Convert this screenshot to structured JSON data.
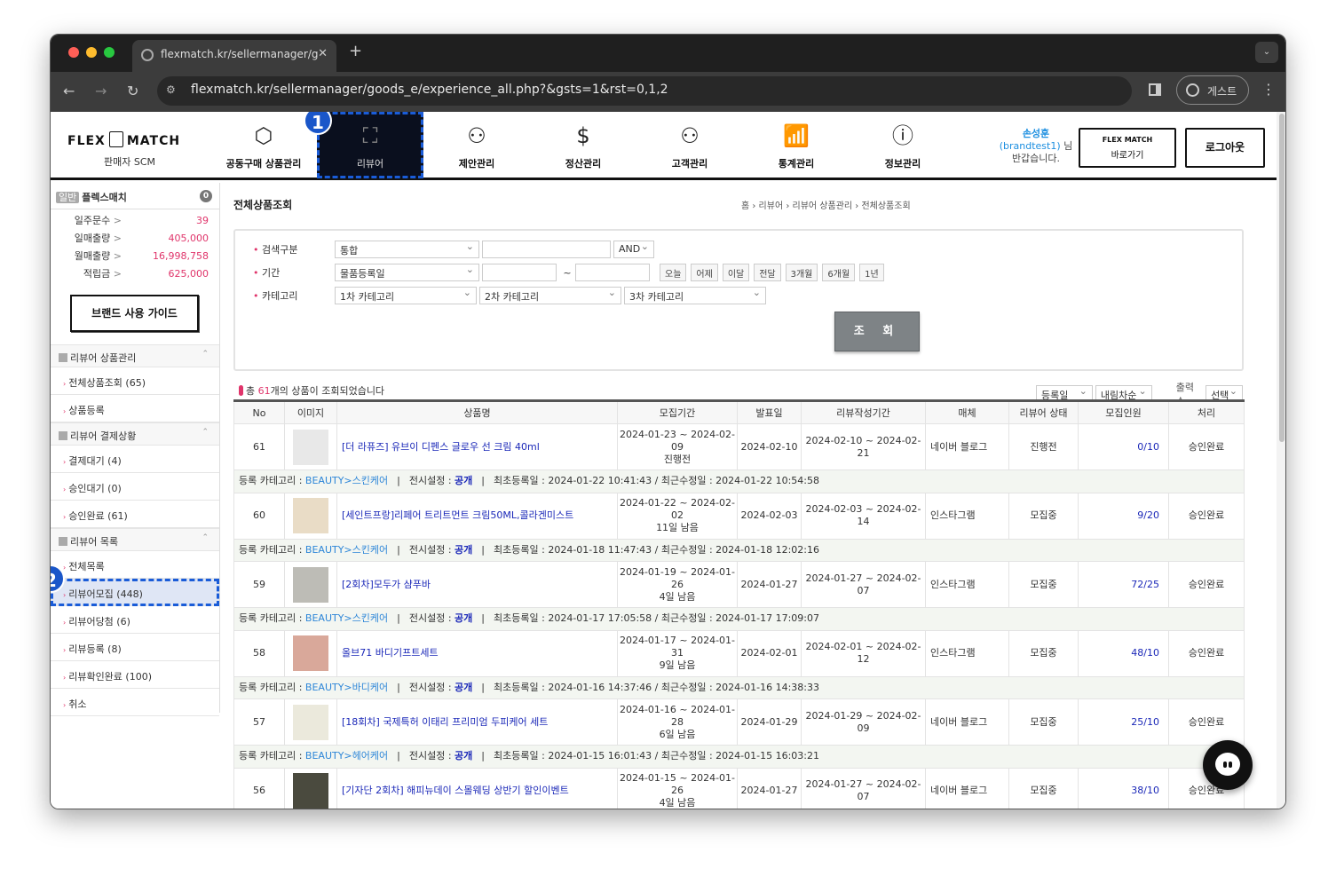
{
  "browser": {
    "tab_title": "flexmatch.kr/sellermanager/g",
    "url": "flexmatch.kr/sellermanager/goods_e/experience_all.php?&gsts=1&rst=0,1,2",
    "profile_label": "게스트"
  },
  "header": {
    "logo_text_left": "FLEX",
    "logo_text_right": "MATCH",
    "logo_sub": "판매자 SCM",
    "nav": [
      {
        "label": "공동구매 상품관리",
        "icon": "box-icon"
      },
      {
        "label": "리뷰어",
        "icon": "network-box-icon",
        "active": true
      },
      {
        "label": "제안관리",
        "icon": "people-hand-icon"
      },
      {
        "label": "정산관리",
        "icon": "coin-hand-icon"
      },
      {
        "label": "고객관리",
        "icon": "customers-icon"
      },
      {
        "label": "통계관리",
        "icon": "chart-growth-icon"
      },
      {
        "label": "정보관리",
        "icon": "info-icon"
      }
    ],
    "user_name": "손성훈",
    "user_id": "(brandtest1)",
    "user_suffix": "님",
    "greeting": "반갑습니다.",
    "flexmatch_button_logo": "FLEX MATCH",
    "flexmatch_button_label": "바로가기",
    "logout_label": "로그아웃"
  },
  "annotations": {
    "badge1": "1",
    "badge2": "2"
  },
  "sidebar": {
    "tier": "일반",
    "store_name": "플렉스매치",
    "notice_count": "0",
    "stats": [
      {
        "label": "일주문수",
        "value": "39"
      },
      {
        "label": "일매출량",
        "value": "405,000"
      },
      {
        "label": "월매출량",
        "value": "16,998,758"
      },
      {
        "label": "적립금",
        "value": "625,000"
      }
    ],
    "guide_button": "브랜드 사용 가이드",
    "sections": [
      {
        "title": "리뷰어 상품관리",
        "items": [
          "전체상품조회 (65)",
          "상품등록"
        ]
      },
      {
        "title": "리뷰어 결제상황",
        "items": [
          "결제대기 (4)",
          "승인대기 (0)",
          "승인완료 (61)"
        ]
      },
      {
        "title": "리뷰어 목록",
        "items": [
          "전체목록",
          "리뷰어모집 (448)",
          "리뷰어당첨 (6)",
          "리뷰등록 (8)",
          "리뷰확인완료 (100)",
          "취소"
        ]
      }
    ],
    "selected_item": "리뷰어모집 (448)"
  },
  "main": {
    "title": "전체상품조회",
    "breadcrumb": "홈 › 리뷰어 › 리뷰어 상품관리 › 전체상품조회",
    "search": {
      "type_label": "검색구분",
      "type_value": "통합",
      "keyword_value": "",
      "logic_value": "AND",
      "period_label": "기간",
      "period_type": "물품등록일",
      "date_from": "",
      "date_sep": "~",
      "date_to": "",
      "quick": [
        "오늘",
        "어제",
        "이달",
        "전달",
        "3개월",
        "6개월",
        "1년"
      ],
      "category_label": "카테고리",
      "cat1": "1차 카테고리",
      "cat2": "2차 카테고리",
      "cat3": "3차 카테고리",
      "submit": "조 회"
    },
    "total_prefix": "총 ",
    "total_count": "61",
    "total_suffix": "개의 상품이 조회되었습니다",
    "sort_field": "등록일",
    "sort_order": "내림차순",
    "page_size_label": "출력수",
    "page_size_value": "선택",
    "columns": [
      "No",
      "이미지",
      "상품명",
      "모집기간",
      "발표일",
      "리뷰작성기간",
      "매체",
      "리뷰어 상태",
      "모집인원",
      "처리"
    ],
    "info_labels": {
      "category": "등록 카테고리 : ",
      "display": "전시설정 : ",
      "first": "최초등록일 : ",
      "modified": " / 최근수정일 : "
    },
    "rows": [
      {
        "no": "61",
        "name": "[더 라퓨즈] 유브이 디펜스 글로우 선 크림 40ml",
        "period": "2024-01-23 ~ 2024-02-09",
        "remain": "진행전",
        "announce": "2024-02-10",
        "review_period": "2024-02-10 ~ 2024-02-21",
        "media": "네이버 블로그",
        "status": "진행전",
        "count": "0/10",
        "process": "승인완료",
        "category": "BEAUTY>스킨케어",
        "display": "공개",
        "created": "2024-01-22 10:41:43",
        "modified": "2024-01-22 10:54:58",
        "thumb": "#e8e8e8"
      },
      {
        "no": "60",
        "name": "[세인트프랑]리페어 트리트먼트 크림50ML,콜라겐미스트",
        "period": "2024-01-22 ~ 2024-02-02",
        "remain": "11일 남음",
        "announce": "2024-02-03",
        "review_period": "2024-02-03 ~ 2024-02-14",
        "media": "인스타그램",
        "status": "모집중",
        "count": "9/20",
        "process": "승인완료",
        "category": "BEAUTY>스킨케어",
        "display": "공개",
        "created": "2024-01-18 11:47:43",
        "modified": "2024-01-18 12:02:16",
        "thumb": "#e9dcc6"
      },
      {
        "no": "59",
        "name": "[2회차]모두가 샴푸바",
        "period": "2024-01-19 ~ 2024-01-26",
        "remain": "4일 남음",
        "announce": "2024-01-27",
        "review_period": "2024-01-27 ~ 2024-02-07",
        "media": "인스타그램",
        "status": "모집중",
        "count": "72/25",
        "process": "승인완료",
        "category": "BEAUTY>스킨케어",
        "display": "공개",
        "created": "2024-01-17 17:05:58",
        "modified": "2024-01-17 17:09:07",
        "thumb": "#bdbcb6"
      },
      {
        "no": "58",
        "name": "올브71 바디기프트세트",
        "period": "2024-01-17 ~ 2024-01-31",
        "remain": "9일 남음",
        "announce": "2024-02-01",
        "review_period": "2024-02-01 ~ 2024-02-12",
        "media": "인스타그램",
        "status": "모집중",
        "count": "48/10",
        "process": "승인완료",
        "category": "BEAUTY>바디케어",
        "display": "공개",
        "created": "2024-01-16 14:37:46",
        "modified": "2024-01-16 14:38:33",
        "thumb": "#d9a89a"
      },
      {
        "no": "57",
        "name": "[18회차] 국제특허 이태리 프리미엄 두피케어 세트",
        "period": "2024-01-16 ~ 2024-01-28",
        "remain": "6일 남음",
        "announce": "2024-01-29",
        "review_period": "2024-01-29 ~ 2024-02-09",
        "media": "네이버 블로그",
        "status": "모집중",
        "count": "25/10",
        "process": "승인완료",
        "category": "BEAUTY>헤어케어",
        "display": "공개",
        "created": "2024-01-15 16:01:43",
        "modified": "2024-01-15 16:03:21",
        "thumb": "#ebe9dc"
      },
      {
        "no": "56",
        "name": "[기자단 2회차] 해피뉴데이 스몰웨딩 상반기 할인이벤트",
        "period": "2024-01-15 ~ 2024-01-26",
        "remain": "4일 남음",
        "announce": "2024-01-27",
        "review_period": "2024-01-27 ~ 2024-02-07",
        "media": "네이버 블로그",
        "status": "모집중",
        "count": "38/10",
        "process": "승인완료",
        "thumb": "#4a4a3e"
      }
    ]
  }
}
